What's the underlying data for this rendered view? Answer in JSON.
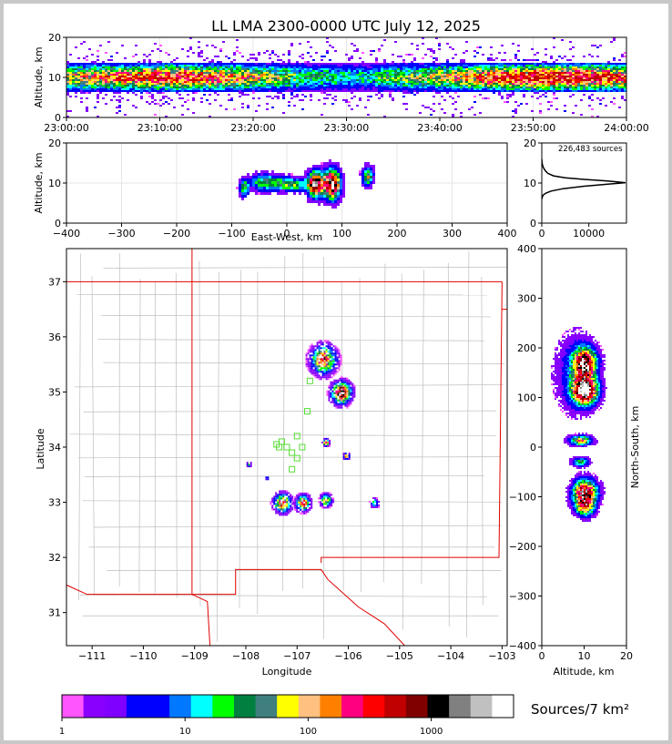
{
  "chart_data": [
    {
      "type": "heatmap",
      "panel": "altitude-vs-time",
      "title": "LL LMA 2300-0000 UTC July 12, 2025",
      "xlabel": "",
      "ylabel": "Altitude, km",
      "xticks": [
        "23:00:00",
        "23:10:00",
        "23:20:00",
        "23:30:00",
        "23:40:00",
        "23:50:00",
        "24:00:00"
      ],
      "yticks": [
        0,
        10,
        20
      ],
      "ylim": [
        0,
        20
      ],
      "band_center_km": 10,
      "band_halfwidth_km": 3,
      "grid": true
    },
    {
      "type": "heatmap",
      "panel": "altitude-vs-east-west",
      "xlabel": "East-West, km",
      "ylabel": "Altitude, km",
      "xticks": [
        -400,
        -300,
        -200,
        -100,
        0,
        100,
        200,
        300,
        400
      ],
      "yticks": [
        0,
        10,
        20
      ],
      "xlim": [
        -400,
        400
      ],
      "ylim": [
        0,
        20
      ],
      "grid": true
    },
    {
      "type": "line",
      "panel": "altitude-histogram",
      "annotation": "226,483 sources",
      "xticks": [
        0,
        10000
      ],
      "yticks": [
        0,
        10,
        20
      ],
      "xlim": [
        0,
        18000
      ],
      "ylim": [
        0,
        20
      ],
      "x": [
        0,
        100,
        300,
        900,
        2000,
        4500,
        9000,
        14000,
        17800,
        14000,
        9000,
        5000,
        2500,
        1300,
        800,
        500,
        300,
        150,
        60,
        0
      ],
      "y": [
        6,
        6.5,
        7,
        7.5,
        8,
        8.6,
        9.2,
        9.7,
        10.1,
        10.5,
        10.9,
        11.3,
        11.8,
        12.4,
        13,
        13.5,
        14,
        14.5,
        15,
        16
      ]
    },
    {
      "type": "scatter",
      "panel": "plan-view-map",
      "xlabel": "Longitude",
      "ylabel": "Latitude",
      "xticks": [
        -111,
        -110,
        -109,
        -108,
        -107,
        -106,
        -105,
        -104,
        -103
      ],
      "yticks": [
        31,
        32,
        33,
        34,
        35,
        36,
        37
      ],
      "xlim": [
        -111.5,
        -102.9
      ],
      "ylim": [
        30.4,
        37.6
      ],
      "stations_lon_lat": [
        [
          -107.3,
          34.1
        ],
        [
          -107.2,
          34.0
        ],
        [
          -107.0,
          34.2
        ],
        [
          -106.9,
          34.0
        ],
        [
          -107.1,
          33.9
        ],
        [
          -107.0,
          33.8
        ],
        [
          -107.1,
          33.6
        ],
        [
          -106.8,
          34.65
        ],
        [
          -106.75,
          35.2
        ],
        [
          -107.35,
          34.0
        ],
        [
          -107.4,
          34.05
        ]
      ],
      "clusters": [
        {
          "lon": -106.5,
          "lat": 35.6,
          "size": 0.45,
          "peak": "red"
        },
        {
          "lon": -106.15,
          "lat": 35.0,
          "size": 0.35,
          "peak": "white"
        },
        {
          "lon": -107.3,
          "lat": 33.0,
          "size": 0.3,
          "peak": "red"
        },
        {
          "lon": -106.9,
          "lat": 33.0,
          "size": 0.25,
          "peak": "red"
        },
        {
          "lon": -106.45,
          "lat": 33.05,
          "size": 0.2,
          "peak": "orange"
        },
        {
          "lon": -105.5,
          "lat": 33.0,
          "size": 0.15,
          "peak": "green"
        },
        {
          "lon": -106.45,
          "lat": 34.1,
          "size": 0.12,
          "peak": "red"
        },
        {
          "lon": -106.05,
          "lat": 33.85,
          "size": 0.1,
          "peak": "red"
        },
        {
          "lon": -107.95,
          "lat": 33.7,
          "size": 0.08,
          "peak": "green"
        },
        {
          "lon": -107.6,
          "lat": 33.45,
          "size": 0.06,
          "peak": "blue"
        }
      ]
    },
    {
      "type": "heatmap",
      "panel": "north-south-vs-altitude",
      "xlabel": "Altitude, km",
      "ylabel": "North-South, km",
      "xticks": [
        0,
        10,
        20
      ],
      "yticks": [
        -400,
        -300,
        -200,
        -100,
        0,
        100,
        200,
        300,
        400
      ],
      "xlim": [
        0,
        20
      ],
      "ylim": [
        -400,
        400
      ]
    }
  ],
  "colorbar": {
    "label": "Sources/7 km²",
    "ticks": [
      "1",
      "10",
      "100",
      "1000"
    ],
    "colors": [
      "#ff55ff",
      "#8a00ff",
      "#7f00ff",
      "#0000ff",
      "#0000ff",
      "#0078ff",
      "#00ffff",
      "#00ff00",
      "#008040",
      "#3f7f7f",
      "#ffff00",
      "#ffc080",
      "#ff8000",
      "#ff0080",
      "#ff0000",
      "#c00000",
      "#800000",
      "#000000",
      "#808080",
      "#c0c0c0",
      "#ffffff"
    ]
  }
}
